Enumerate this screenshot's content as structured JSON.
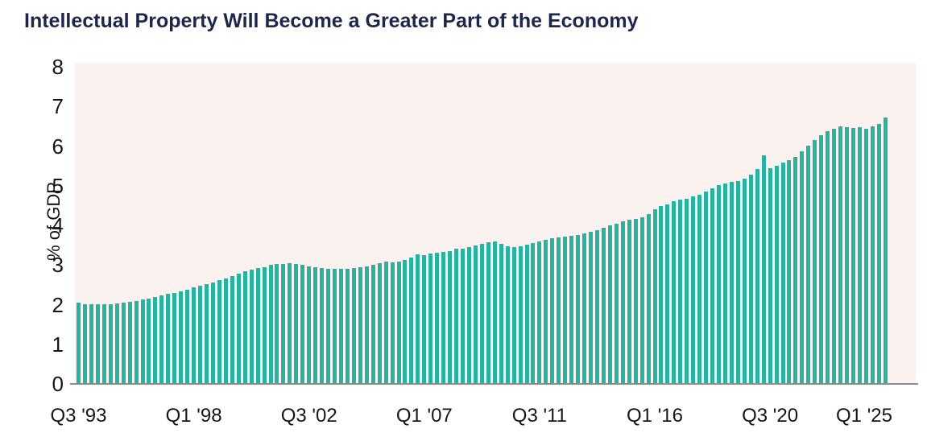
{
  "title": "Intellectual Property Will Become a Greater Part of the Economy",
  "colors": {
    "bar": "#26b3a2",
    "plot_background": "#faf2ef",
    "title_text": "#1c2749",
    "axis_line": "#8f8f8f",
    "tick_text": "#161616"
  },
  "chart_data": {
    "type": "bar",
    "title": "Intellectual Property Will Become a Greater Part of the Economy",
    "xlabel": "",
    "ylabel": "% of GDP",
    "ylim": [
      0,
      8
    ],
    "yticks": [
      0,
      1,
      2,
      3,
      4,
      5,
      6,
      7,
      8
    ],
    "grid": false,
    "legend_position": "none",
    "x_unit": "quarter",
    "x_start": "Q3 1993",
    "x_end": "Q1 2025",
    "xtick_indices": [
      0,
      18,
      36,
      54,
      72,
      90,
      108,
      126
    ],
    "xtick_labels": [
      "Q3 '93",
      "Q1 '98",
      "Q3 '02",
      "Q1 '07",
      "Q3 '11",
      "Q1 '16",
      "Q3 '20",
      "Q1 '25"
    ],
    "values": [
      2.05,
      2.02,
      2.0,
      2.0,
      2.0,
      2.02,
      2.03,
      2.05,
      2.08,
      2.1,
      2.13,
      2.16,
      2.2,
      2.24,
      2.27,
      2.3,
      2.34,
      2.38,
      2.43,
      2.47,
      2.51,
      2.56,
      2.62,
      2.66,
      2.72,
      2.78,
      2.85,
      2.89,
      2.92,
      2.95,
      3.0,
      3.02,
      3.02,
      3.04,
      3.02,
      3.0,
      2.97,
      2.94,
      2.92,
      2.91,
      2.9,
      2.9,
      2.91,
      2.93,
      2.95,
      2.97,
      3.0,
      3.05,
      3.08,
      3.06,
      3.08,
      3.12,
      3.18,
      3.26,
      3.25,
      3.28,
      3.3,
      3.32,
      3.36,
      3.42,
      3.42,
      3.46,
      3.5,
      3.54,
      3.57,
      3.6,
      3.54,
      3.48,
      3.46,
      3.48,
      3.52,
      3.56,
      3.6,
      3.64,
      3.67,
      3.7,
      3.72,
      3.74,
      3.76,
      3.8,
      3.83,
      3.88,
      3.94,
      3.99,
      4.05,
      4.1,
      4.14,
      4.16,
      4.2,
      4.28,
      4.4,
      4.48,
      4.53,
      4.6,
      4.65,
      4.68,
      4.73,
      4.78,
      4.86,
      4.94,
      5.01,
      5.06,
      5.09,
      5.12,
      5.17,
      5.28,
      5.42,
      5.77,
      5.44,
      5.5,
      5.59,
      5.64,
      5.73,
      5.86,
      6.0,
      6.15,
      6.28,
      6.38,
      6.44,
      6.49,
      6.47,
      6.45,
      6.48,
      6.44,
      6.5,
      6.55,
      6.72
    ]
  }
}
